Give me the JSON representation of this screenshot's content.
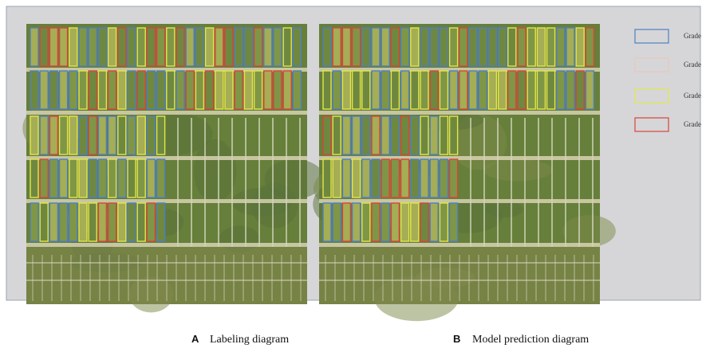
{
  "legend": {
    "items": [
      {
        "label": "Grade",
        "color": "#4f7fc0"
      },
      {
        "label": "Grade",
        "color": "#e6c9bb"
      },
      {
        "label": "Grade",
        "color": "#e3e64a"
      },
      {
        "label": "Grade",
        "color": "#d8453a"
      }
    ]
  },
  "panels": [
    {
      "letter": "A",
      "caption": "Labeling diagram"
    },
    {
      "letter": "B",
      "caption": "Model prediction diagram"
    }
  ]
}
